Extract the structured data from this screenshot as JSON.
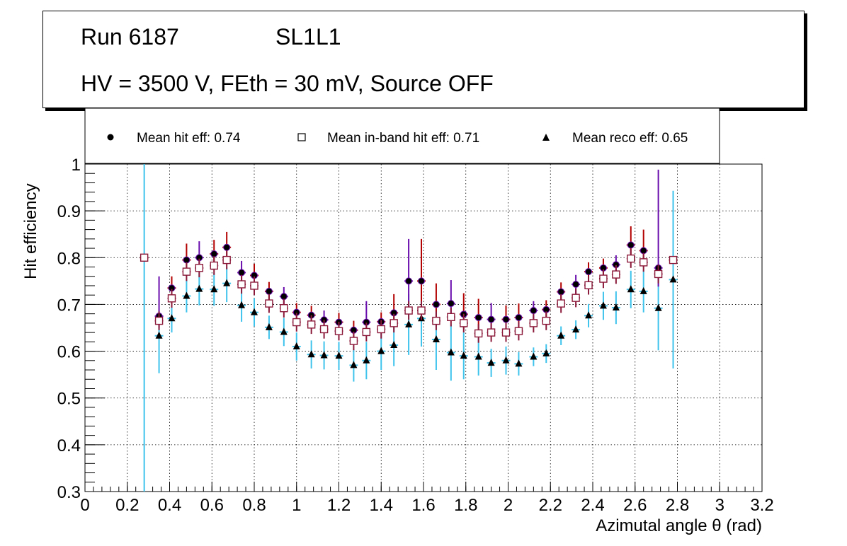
{
  "title_box": {
    "run": "Run 6187",
    "layer": "SL1L1",
    "conditions": "HV = 3500 V, FEth = 30 mV, Source OFF"
  },
  "legend": {
    "entries": [
      {
        "label": "Mean hit  eff: 0.74",
        "marker": "circle"
      },
      {
        "label": "Mean in-band hit eff: 0.71",
        "marker": "open-square"
      },
      {
        "label": "Mean reco eff: 0.65",
        "marker": "triangle"
      }
    ]
  },
  "colors": {
    "hit_err": "#b30000",
    "hit_err_alt": "#6a0dad",
    "inband_marker": "#8b1a3a",
    "reco_err": "#3ec3ec",
    "grid": "#000000"
  },
  "chart_data": {
    "type": "scatter",
    "title": "",
    "xlabel": "Azimutal angle θ (rad)",
    "ylabel": "Hit efficiency",
    "xlim": [
      0,
      3.2
    ],
    "ylim": [
      0.3,
      1.0
    ],
    "x_ticks": [
      "0",
      "0.2",
      "0.4",
      "0.6",
      "0.8",
      "1",
      "1.2",
      "1.4",
      "1.6",
      "1.8",
      "2",
      "2.2",
      "2.4",
      "2.6",
      "2.8",
      "3",
      "3.2"
    ],
    "y_ticks": [
      "0.3",
      "0.4",
      "0.5",
      "0.6",
      "0.7",
      "0.8",
      "0.9",
      "1"
    ],
    "grid": true,
    "x_half_width": 0.02,
    "x": [
      0.28,
      0.35,
      0.41,
      0.48,
      0.54,
      0.61,
      0.67,
      0.74,
      0.8,
      0.87,
      0.94,
      1.0,
      1.07,
      1.13,
      1.2,
      1.27,
      1.33,
      1.4,
      1.46,
      1.53,
      1.59,
      1.66,
      1.73,
      1.79,
      1.86,
      1.92,
      1.99,
      2.05,
      2.12,
      2.18,
      2.25,
      2.32,
      2.38,
      2.45,
      2.51,
      2.58,
      2.64,
      2.71,
      2.78
    ],
    "series": [
      {
        "name": "Mean hit  eff: 0.74",
        "marker": "circle",
        "values": [
          0.8,
          0.675,
          0.735,
          0.795,
          0.8,
          0.808,
          0.822,
          0.768,
          0.762,
          0.728,
          0.717,
          0.683,
          0.677,
          0.667,
          0.662,
          0.645,
          0.662,
          0.663,
          0.682,
          0.75,
          0.75,
          0.7,
          0.702,
          0.679,
          0.672,
          0.668,
          0.668,
          0.672,
          0.687,
          0.689,
          0.727,
          0.743,
          0.77,
          0.778,
          0.785,
          0.827,
          0.815,
          0.778,
          0.795
        ],
        "err_low": [
          0.0,
          0.025,
          0.02,
          0.03,
          0.025,
          0.03,
          0.03,
          0.025,
          0.02,
          0.02,
          0.02,
          0.02,
          0.02,
          0.02,
          0.02,
          0.02,
          0.02,
          0.02,
          0.025,
          0.07,
          0.07,
          0.03,
          0.03,
          0.03,
          0.03,
          0.03,
          0.025,
          0.025,
          0.02,
          0.02,
          0.02,
          0.02,
          0.02,
          0.02,
          0.025,
          0.03,
          0.035,
          0.04,
          0.0
        ],
        "err_high": [
          0.0,
          0.085,
          0.025,
          0.035,
          0.035,
          0.03,
          0.033,
          0.025,
          0.025,
          0.02,
          0.02,
          0.02,
          0.02,
          0.02,
          0.02,
          0.02,
          0.045,
          0.02,
          0.04,
          0.09,
          0.09,
          0.045,
          0.05,
          0.045,
          0.04,
          0.035,
          0.03,
          0.03,
          0.02,
          0.02,
          0.02,
          0.02,
          0.02,
          0.02,
          0.02,
          0.04,
          0.045,
          0.21,
          0.0
        ]
      },
      {
        "name": "Mean in-band hit eff: 0.71",
        "marker": "open-square",
        "values": [
          0.8,
          0.665,
          0.713,
          0.77,
          0.778,
          0.783,
          0.795,
          0.743,
          0.74,
          0.702,
          0.692,
          0.662,
          0.657,
          0.647,
          0.643,
          0.622,
          0.641,
          0.647,
          0.66,
          0.687,
          0.687,
          0.665,
          0.673,
          0.66,
          0.638,
          0.64,
          0.64,
          0.643,
          0.66,
          0.665,
          0.702,
          0.714,
          0.741,
          0.755,
          0.764,
          0.798,
          0.79,
          0.765,
          0.795
        ],
        "err_low": [
          0.0,
          0.02,
          0.02,
          0.02,
          0.02,
          0.02,
          0.02,
          0.02,
          0.02,
          0.02,
          0.02,
          0.02,
          0.02,
          0.02,
          0.02,
          0.02,
          0.02,
          0.02,
          0.02,
          0.02,
          0.02,
          0.02,
          0.02,
          0.02,
          0.02,
          0.02,
          0.02,
          0.02,
          0.02,
          0.02,
          0.02,
          0.02,
          0.02,
          0.02,
          0.02,
          0.02,
          0.02,
          0.02,
          0.0
        ],
        "err_high": [
          0.0,
          0.02,
          0.02,
          0.02,
          0.02,
          0.02,
          0.02,
          0.02,
          0.02,
          0.02,
          0.02,
          0.02,
          0.02,
          0.02,
          0.02,
          0.02,
          0.02,
          0.02,
          0.02,
          0.02,
          0.02,
          0.02,
          0.02,
          0.02,
          0.02,
          0.02,
          0.02,
          0.02,
          0.02,
          0.02,
          0.02,
          0.02,
          0.02,
          0.02,
          0.02,
          0.02,
          0.02,
          0.02,
          0.0
        ]
      },
      {
        "name": "Mean reco eff: 0.65",
        "marker": "triangle",
        "values": [
          0.8,
          0.633,
          0.67,
          0.718,
          0.733,
          0.732,
          0.745,
          0.698,
          0.683,
          0.651,
          0.641,
          0.61,
          0.593,
          0.591,
          0.59,
          0.57,
          0.58,
          0.6,
          0.613,
          0.657,
          0.67,
          0.625,
          0.597,
          0.59,
          0.588,
          0.575,
          0.58,
          0.573,
          0.588,
          0.595,
          0.633,
          0.646,
          0.676,
          0.697,
          0.693,
          0.732,
          0.728,
          0.692,
          0.753
        ],
        "err_low": [
          0.5,
          0.08,
          0.03,
          0.035,
          0.035,
          0.035,
          0.04,
          0.035,
          0.03,
          0.025,
          0.03,
          0.03,
          0.03,
          0.03,
          0.03,
          0.035,
          0.04,
          0.04,
          0.045,
          0.065,
          0.06,
          0.065,
          0.06,
          0.05,
          0.04,
          0.03,
          0.03,
          0.025,
          0.02,
          0.02,
          0.02,
          0.02,
          0.025,
          0.03,
          0.035,
          0.04,
          0.045,
          0.09,
          0.19
        ],
        "err_high": [
          0.2,
          0.05,
          0.035,
          0.035,
          0.035,
          0.035,
          0.035,
          0.035,
          0.03,
          0.025,
          0.03,
          0.03,
          0.03,
          0.03,
          0.03,
          0.035,
          0.04,
          0.04,
          0.045,
          0.065,
          0.06,
          0.065,
          0.06,
          0.05,
          0.04,
          0.03,
          0.03,
          0.025,
          0.02,
          0.02,
          0.02,
          0.02,
          0.025,
          0.03,
          0.035,
          0.04,
          0.045,
          0.09,
          0.19
        ]
      }
    ]
  }
}
